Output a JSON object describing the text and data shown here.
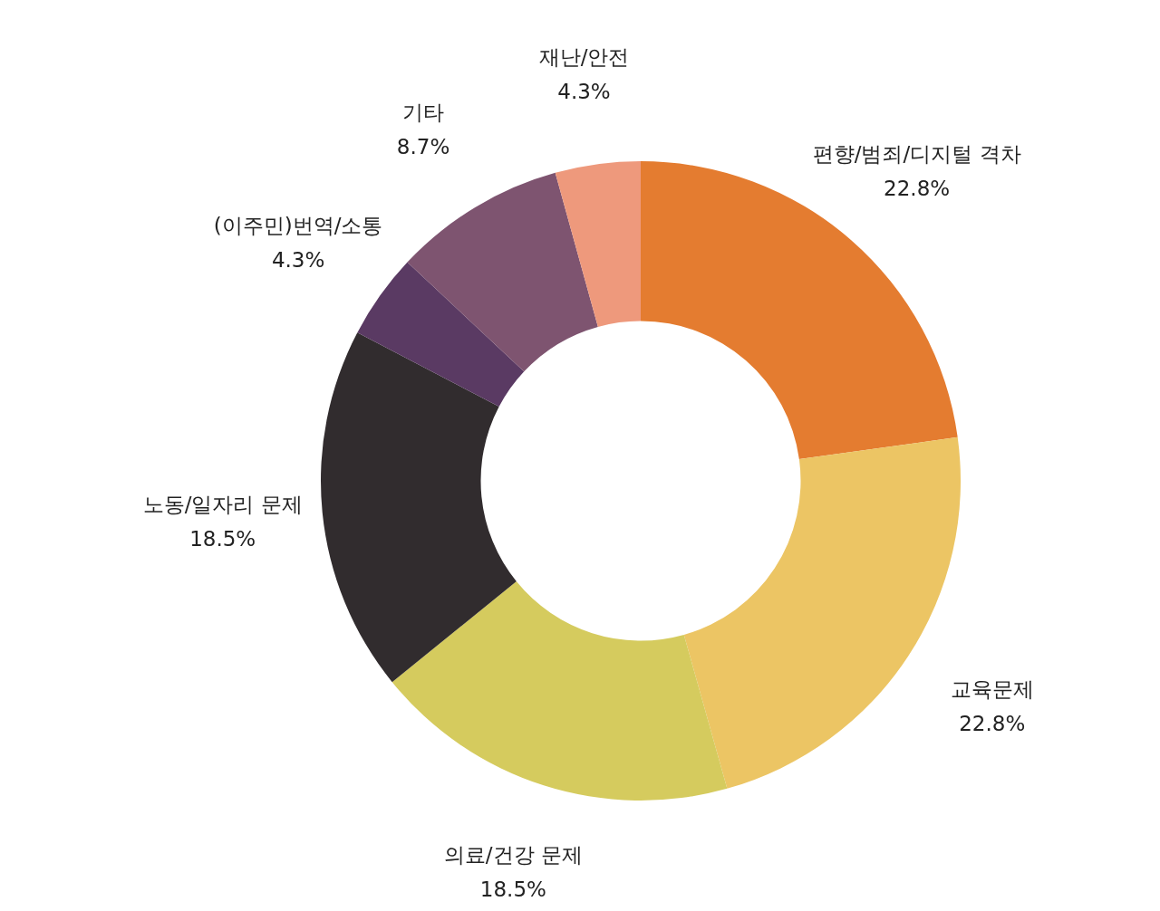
{
  "chart_data": {
    "type": "donut",
    "categories": [
      "편향/범죄/디지털 격차",
      "교육문제",
      "의료/건강 문제",
      "노동/일자리 문제",
      "(이주민)번역/소통",
      "기타",
      "재난/안전"
    ],
    "values": [
      22.8,
      22.8,
      18.5,
      18.5,
      4.3,
      8.7,
      4.3
    ],
    "value_labels": [
      "22.8%",
      "22.8%",
      "18.5%",
      "18.5%",
      "4.3%",
      "8.7%",
      "4.3%"
    ],
    "colors": [
      "#e47c30",
      "#ecc564",
      "#d5cb5e",
      "#312c2e",
      "#5a3a63",
      "#7e5470",
      "#ee997c"
    ]
  }
}
